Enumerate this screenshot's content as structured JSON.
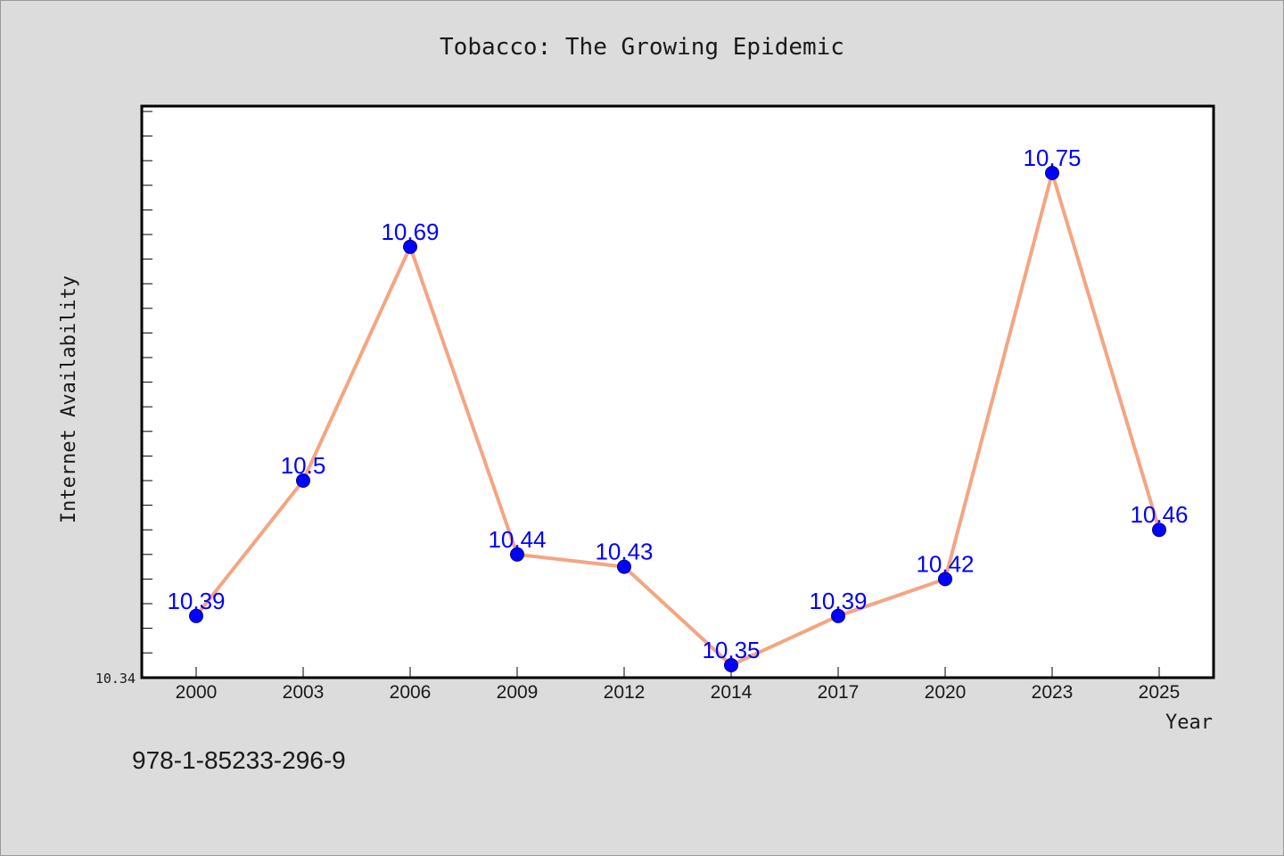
{
  "chart_data": {
    "type": "line",
    "title": "Tobacco: The Growing Epidemic",
    "xlabel": "Year",
    "ylabel": "Internet Availability",
    "categories": [
      "2000",
      "2003",
      "2006",
      "2009",
      "2012",
      "2014",
      "2017",
      "2020",
      "2023",
      "2025"
    ],
    "values": [
      10.39,
      10.5,
      10.69,
      10.44,
      10.43,
      10.35,
      10.39,
      10.42,
      10.75,
      10.46
    ],
    "data_labels": [
      "10.39",
      "10.5",
      "10.69",
      "10.44",
      "10.43",
      "10.35",
      "10.39",
      "10.42",
      "10.75",
      "10.46"
    ],
    "ymin_label": "10.34",
    "ylim": [
      10.34,
      10.8
    ],
    "grid": false,
    "legend": "none",
    "colors": {
      "line": "#f4a582",
      "marker": "#0000ff",
      "labels": "#0000ff",
      "background": "#dcdcdc",
      "plot_background": "#ffffff"
    }
  },
  "footer_text": "978-1-85233-296-9"
}
